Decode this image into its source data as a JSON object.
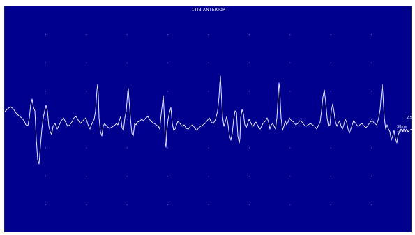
{
  "viewer": {
    "title": "1TIB ANTERIOR",
    "background": "#00008f",
    "trace_color": "#e8e8ff",
    "readout_value": "2.57",
    "readout_label": "30ms 1ms"
  }
}
